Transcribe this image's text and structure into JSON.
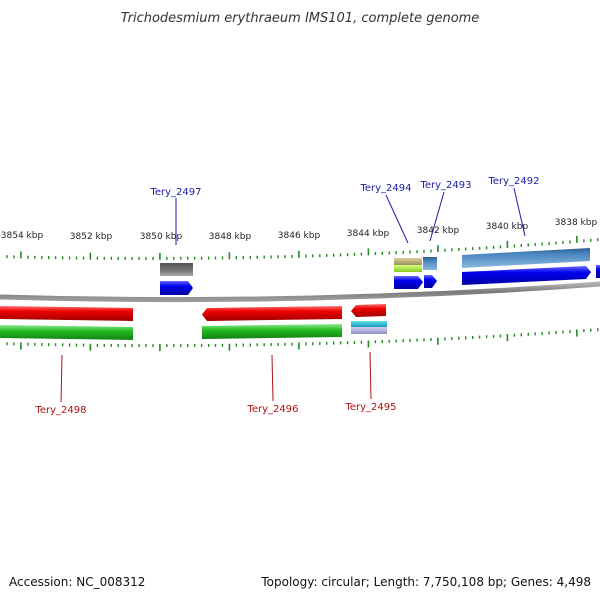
{
  "title": "Trichodesmium erythraeum IMS101, complete genome",
  "footer": {
    "accession": "Accession: NC_008312",
    "summary": "Topology: circular; Length: 7,750,108 bp; Genes: 4,498"
  },
  "scale_ticks": [
    {
      "label": "3854 kbp"
    },
    {
      "label": "3852 kbp"
    },
    {
      "label": "3850 kbp"
    },
    {
      "label": "3848 kbp"
    },
    {
      "label": "3846 kbp"
    },
    {
      "label": "3844 kbp"
    },
    {
      "label": "3842 kbp"
    },
    {
      "label": "3840 kbp"
    },
    {
      "label": "3838 kbp"
    }
  ],
  "gene_labels": [
    {
      "id": "g2497",
      "text": "Tery_2497"
    },
    {
      "id": "g2494",
      "text": "Tery_2494"
    },
    {
      "id": "g2493",
      "text": "Tery_2493"
    },
    {
      "id": "g2492",
      "text": "Tery_2492"
    },
    {
      "id": "g2498",
      "text": "Tery_2498"
    },
    {
      "id": "g2496",
      "text": "Tery_2496"
    },
    {
      "id": "g2495",
      "text": "Tery_2495"
    }
  ],
  "colors": {
    "backbone": "#8a8a8a",
    "forward_cds": "#0000ee",
    "reverse_cds": "#ee0000",
    "forward_feature": "#4a86c0",
    "reverse_feature": "#22bb22",
    "grey_feature": "#666666",
    "tick": "#228b22",
    "label_blue": "#1a1aa6",
    "label_red": "#b01010"
  }
}
